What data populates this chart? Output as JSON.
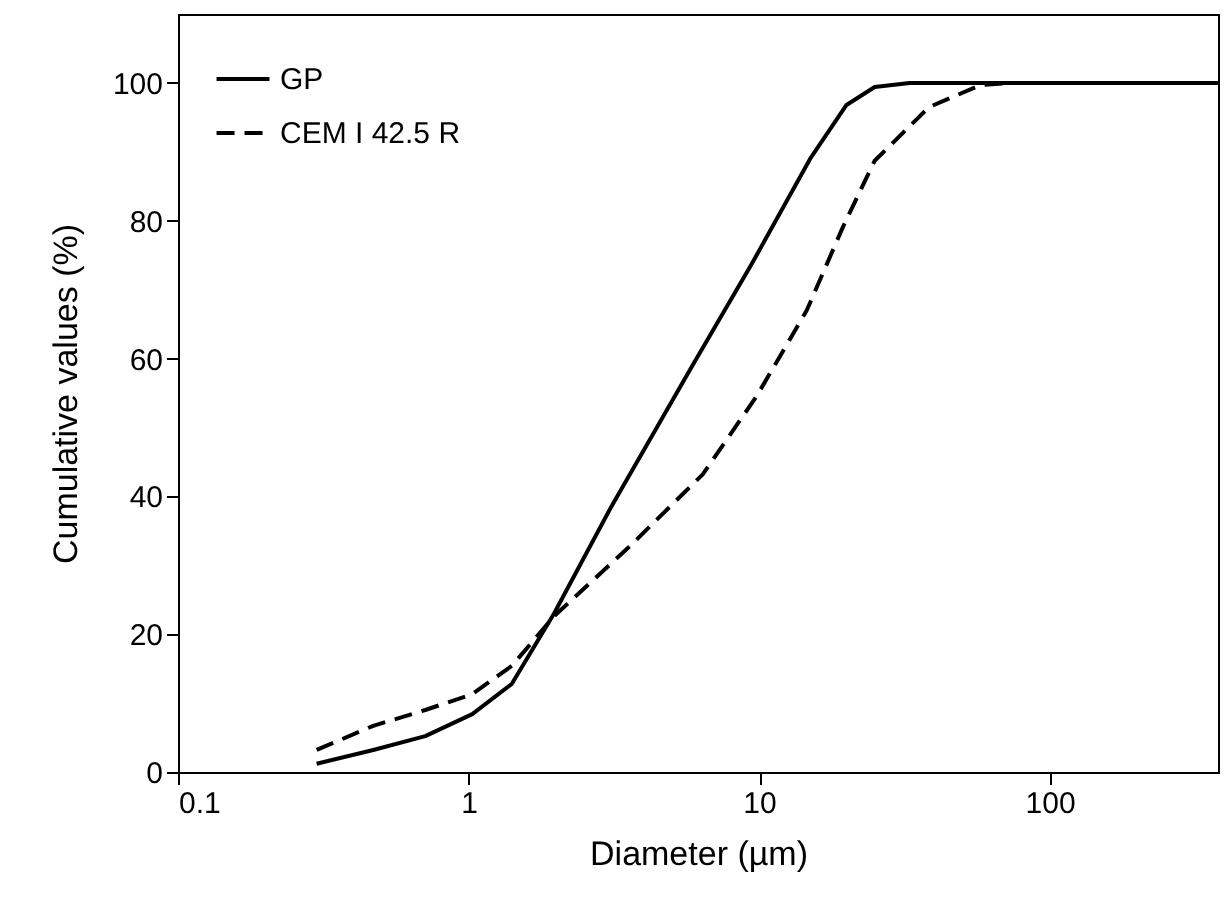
{
  "chart_data": {
    "type": "line",
    "xlabel": "Diameter (µm)",
    "ylabel": "Cumulative values (%)",
    "log": "x",
    "xlim": [
      0.1,
      380
    ],
    "xticks": [
      0.1,
      1,
      10,
      100
    ],
    "ylim": [
      0,
      110
    ],
    "yticks": [
      0,
      20,
      40,
      60,
      80,
      100
    ],
    "grid": false,
    "legend": "top left",
    "marker": "none",
    "series": [
      {
        "name": "GP",
        "color": "#000000",
        "line_style": "solid",
        "x": [
          0.3,
          0.47,
          0.71,
          1.03,
          1.41,
          1.97,
          3.1,
          5.9,
          9.4,
          15,
          20,
          25,
          33,
          380
        ],
        "values": [
          1.2,
          3.2,
          5.2,
          8.4,
          12.8,
          23,
          38.5,
          59,
          73.6,
          89,
          96.8,
          99.4,
          100,
          100
        ]
      },
      {
        "name": "CEM I 42.5 R",
        "color": "#000000",
        "line_style": "dashed",
        "x": [
          0.3,
          0.47,
          0.71,
          1.03,
          1.41,
          1.97,
          3.6,
          6.4,
          9.8,
          14.6,
          19.4,
          25,
          38.5,
          58,
          73,
          380
        ],
        "values": [
          3.2,
          6.7,
          9,
          11.3,
          15.4,
          22.6,
          32.8,
          43.2,
          54.5,
          67,
          79,
          88.7,
          96.5,
          99.7,
          100,
          100
        ]
      }
    ]
  }
}
